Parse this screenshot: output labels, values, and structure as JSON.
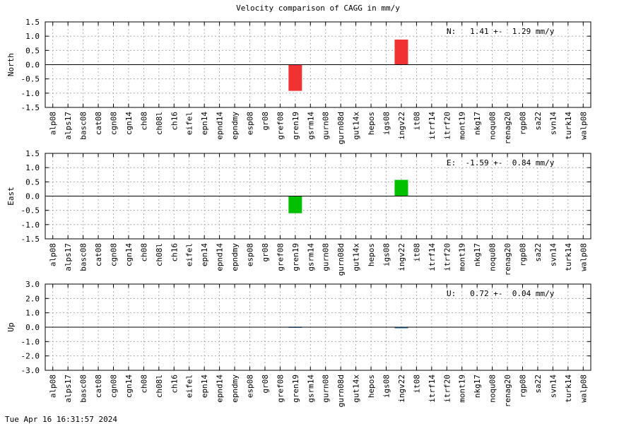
{
  "title": "Velocity comparison of CAGG in mm/y",
  "footer": "Tue Apr 16 16:31:57 2024",
  "colors": {
    "north": "#f03232",
    "east": "#00c000",
    "up": "#1f6fb4",
    "grid": "#a0a0a0",
    "axis": "#000000"
  },
  "chart_data": [
    {
      "type": "bar",
      "ylabel": "North",
      "ylim": [
        -1.5,
        1.5
      ],
      "yticks": [
        "1.5",
        "1.0",
        "0.5",
        "0.0",
        "-0.5",
        "-1.0",
        "-1.5"
      ],
      "annotation": "N:   1.41 +-  1.29 mm/y",
      "grid": true,
      "categories": [
        "alp08",
        "alps17",
        "basc08",
        "cat08",
        "cgn08",
        "cgn14",
        "ch08",
        "ch08l",
        "ch16",
        "eifel",
        "epn14",
        "epnd14",
        "epndmy",
        "esp08",
        "gr08",
        "gref08",
        "gren19",
        "gsrm14",
        "gurn08",
        "gurn08d",
        "gut14x",
        "hepos",
        "igs08",
        "ingv22",
        "it08",
        "itrf14",
        "itrf20",
        "mont19",
        "nkg17",
        "noqu08",
        "renag20",
        "rgp08",
        "sa22",
        "svn14",
        "turk14",
        "walp08"
      ],
      "values": [
        0,
        0,
        0,
        0,
        0,
        0,
        0,
        0,
        0,
        0,
        0,
        0,
        0,
        0,
        0,
        0,
        -0.92,
        0,
        0,
        0,
        0,
        0,
        0,
        0.88,
        0,
        0,
        0,
        0,
        0,
        0,
        0,
        0,
        0,
        0,
        0,
        0
      ]
    },
    {
      "type": "bar",
      "ylabel": "East",
      "ylim": [
        -1.5,
        1.5
      ],
      "yticks": [
        "1.5",
        "1.0",
        "0.5",
        "0.0",
        "-0.5",
        "-1.0",
        "-1.5"
      ],
      "annotation": "E:  -1.59 +-  0.84 mm/y",
      "grid": true,
      "categories": [
        "alp08",
        "alps17",
        "basc08",
        "cat08",
        "cgn08",
        "cgn14",
        "ch08",
        "ch08l",
        "ch16",
        "eifel",
        "epn14",
        "epnd14",
        "epndmy",
        "esp08",
        "gr08",
        "gref08",
        "gren19",
        "gsrm14",
        "gurn08",
        "gurn08d",
        "gut14x",
        "hepos",
        "igs08",
        "ingv22",
        "it08",
        "itrf14",
        "itrf20",
        "mont19",
        "nkg17",
        "noqu08",
        "renag20",
        "rgp08",
        "sa22",
        "svn14",
        "turk14",
        "walp08"
      ],
      "values": [
        0,
        0,
        0,
        0,
        0,
        0,
        0,
        0,
        0,
        0,
        0,
        0,
        0,
        0,
        0,
        0,
        -0.6,
        0,
        0,
        0,
        0,
        0,
        0,
        0.57,
        0,
        0,
        0,
        0,
        0,
        0,
        0,
        0,
        0,
        0,
        0,
        0
      ]
    },
    {
      "type": "bar",
      "ylabel": "Up",
      "ylim": [
        -3.0,
        3.0
      ],
      "yticks": [
        "3.0",
        "2.0",
        "1.0",
        "0.0",
        "-1.0",
        "-2.0",
        "-3.0"
      ],
      "annotation": "U:   0.72 +-  0.04 mm/y",
      "grid": true,
      "categories": [
        "alp08",
        "alps17",
        "basc08",
        "cat08",
        "cgn08",
        "cgn14",
        "ch08",
        "ch08l",
        "ch16",
        "eifel",
        "epn14",
        "epnd14",
        "epndmy",
        "esp08",
        "gr08",
        "gref08",
        "gren19",
        "gsrm14",
        "gurn08",
        "gurn08d",
        "gut14x",
        "hepos",
        "igs08",
        "ingv22",
        "it08",
        "itrf14",
        "itrf20",
        "mont19",
        "nkg17",
        "noqu08",
        "renag20",
        "rgp08",
        "sa22",
        "svn14",
        "turk14",
        "walp08"
      ],
      "values": [
        0,
        0,
        0,
        0,
        0,
        0,
        0,
        0,
        0,
        0,
        0,
        0,
        0,
        0,
        0,
        0,
        0.03,
        0,
        0,
        0,
        0,
        0,
        0,
        -0.03,
        0,
        0,
        0,
        0,
        0,
        0,
        0,
        0,
        0,
        0,
        0,
        0
      ]
    }
  ]
}
